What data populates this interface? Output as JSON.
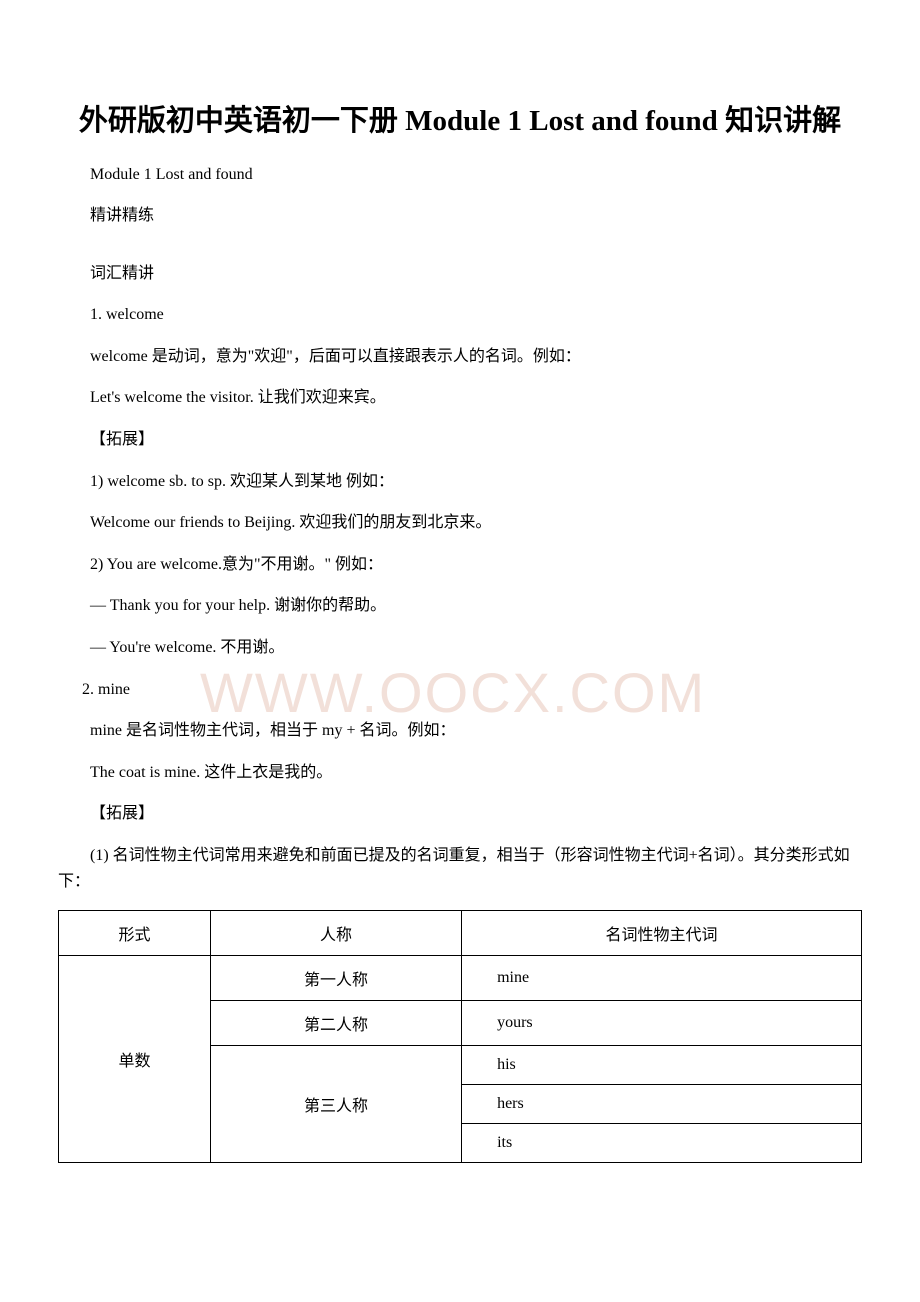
{
  "title": "外研版初中英语初一下册 Module 1 Lost and found 知识讲解",
  "lines": {
    "l1": "Module 1 Lost and found",
    "l2": "精讲精练",
    "l3": "词汇精讲",
    "l4": "1. welcome",
    "l5": " welcome 是动词，意为\"欢迎\"，后面可以直接跟表示人的名词。例如：",
    "l6": " Let's welcome the visitor. 让我们欢迎来宾。",
    "l7": "【拓展】",
    "l8": " 1) welcome sb. to sp. 欢迎某人到某地 例如：",
    "l9": " Welcome our friends to Beijing. 欢迎我们的朋友到北京来。",
    "l10": " 2) You are welcome.意为\"不用谢。\" 例如：",
    "l11": " — Thank you for your help. 谢谢你的帮助。",
    "l12": " — You're welcome. 不用谢。",
    "l13": "2. mine",
    "l14": " mine 是名词性物主代词，相当于 my + 名词。例如：",
    "l15": " The coat is mine. 这件上衣是我的。",
    "l16": " 【拓展】",
    "l17": " (1) 名词性物主代词常用来避免和前面已提及的名词重复，相当于（形容词性物主代词+名词）。其分类形式如下："
  },
  "table": {
    "headers": {
      "c1": "形式",
      "c2": "人称",
      "c3": "名词性物主代词"
    },
    "r1": {
      "form": "单数",
      "p1": "第一人称",
      "v1": "mine",
      "p2": "第二人称",
      "v2": "yours",
      "p3": "第三人称",
      "v3": "his",
      "v4": "hers",
      "v5": "its"
    }
  },
  "watermark": "WWW.OOCX.COM",
  "colors": {
    "text": "#000000",
    "background": "#ffffff",
    "watermark": "#f2e0d9",
    "border": "#000000"
  }
}
